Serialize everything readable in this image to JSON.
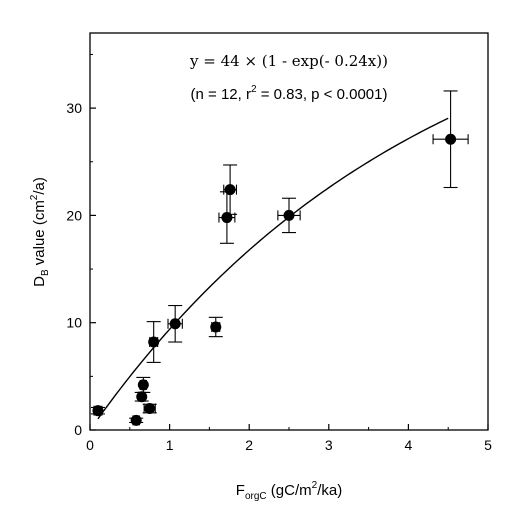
{
  "chart_data": {
    "type": "scatter",
    "xlabel": {
      "main": "F",
      "sub": "orgC",
      "text": " (gC/m",
      "sup": "2",
      "text2": "/ka)"
    },
    "ylabel": {
      "main": "D",
      "sub": "B",
      "text": " value (cm",
      "sup": "2",
      "text2": "/a)"
    },
    "xlim": [
      0,
      5
    ],
    "ylim": [
      0,
      37
    ],
    "xticks": [
      "0",
      "1",
      "2",
      "3",
      "4",
      "5"
    ],
    "yticks": [
      "0",
      "10",
      "20",
      "30"
    ],
    "equation": "y = 44 × (1 -  exp(- 0.24x))",
    "stats": {
      "open": "(n = 12, r",
      "sup": "2",
      "close": " = 0.83, p < 0.0001)"
    },
    "fit": {
      "a": 44,
      "b": 0.24,
      "x_from": 0.1,
      "x_to": 4.5
    },
    "points": [
      {
        "x": 0.1,
        "y": 1.8,
        "xerr": 0.05,
        "yerr": 0.3
      },
      {
        "x": 0.58,
        "y": 0.9,
        "xerr": 0.04,
        "yerr": 0.2
      },
      {
        "x": 0.65,
        "y": 3.1,
        "xerr": 0.04,
        "yerr": 0.4
      },
      {
        "x": 0.67,
        "y": 4.2,
        "xerr": 0.04,
        "yerr": 0.7
      },
      {
        "x": 0.75,
        "y": 2.0,
        "xerr": 0.07,
        "yerr": 0.4
      },
      {
        "x": 0.8,
        "y": 8.2,
        "xerr": 0.05,
        "yerr": 1.9
      },
      {
        "x": 1.07,
        "y": 9.9,
        "xerr": 0.09,
        "yerr": 1.7
      },
      {
        "x": 1.58,
        "y": 9.6,
        "xerr": 0.05,
        "yerr": 0.9
      },
      {
        "x": 1.72,
        "y": 19.8,
        "xerr": 0.1,
        "yerr": 2.4
      },
      {
        "x": 1.76,
        "y": 22.4,
        "xerr": 0.08,
        "yerr": 2.3
      },
      {
        "x": 2.5,
        "y": 20.0,
        "xerr": 0.14,
        "yerr": 1.6
      },
      {
        "x": 4.53,
        "y": 27.1,
        "xerr": 0.22,
        "yerr": 4.5
      }
    ]
  }
}
